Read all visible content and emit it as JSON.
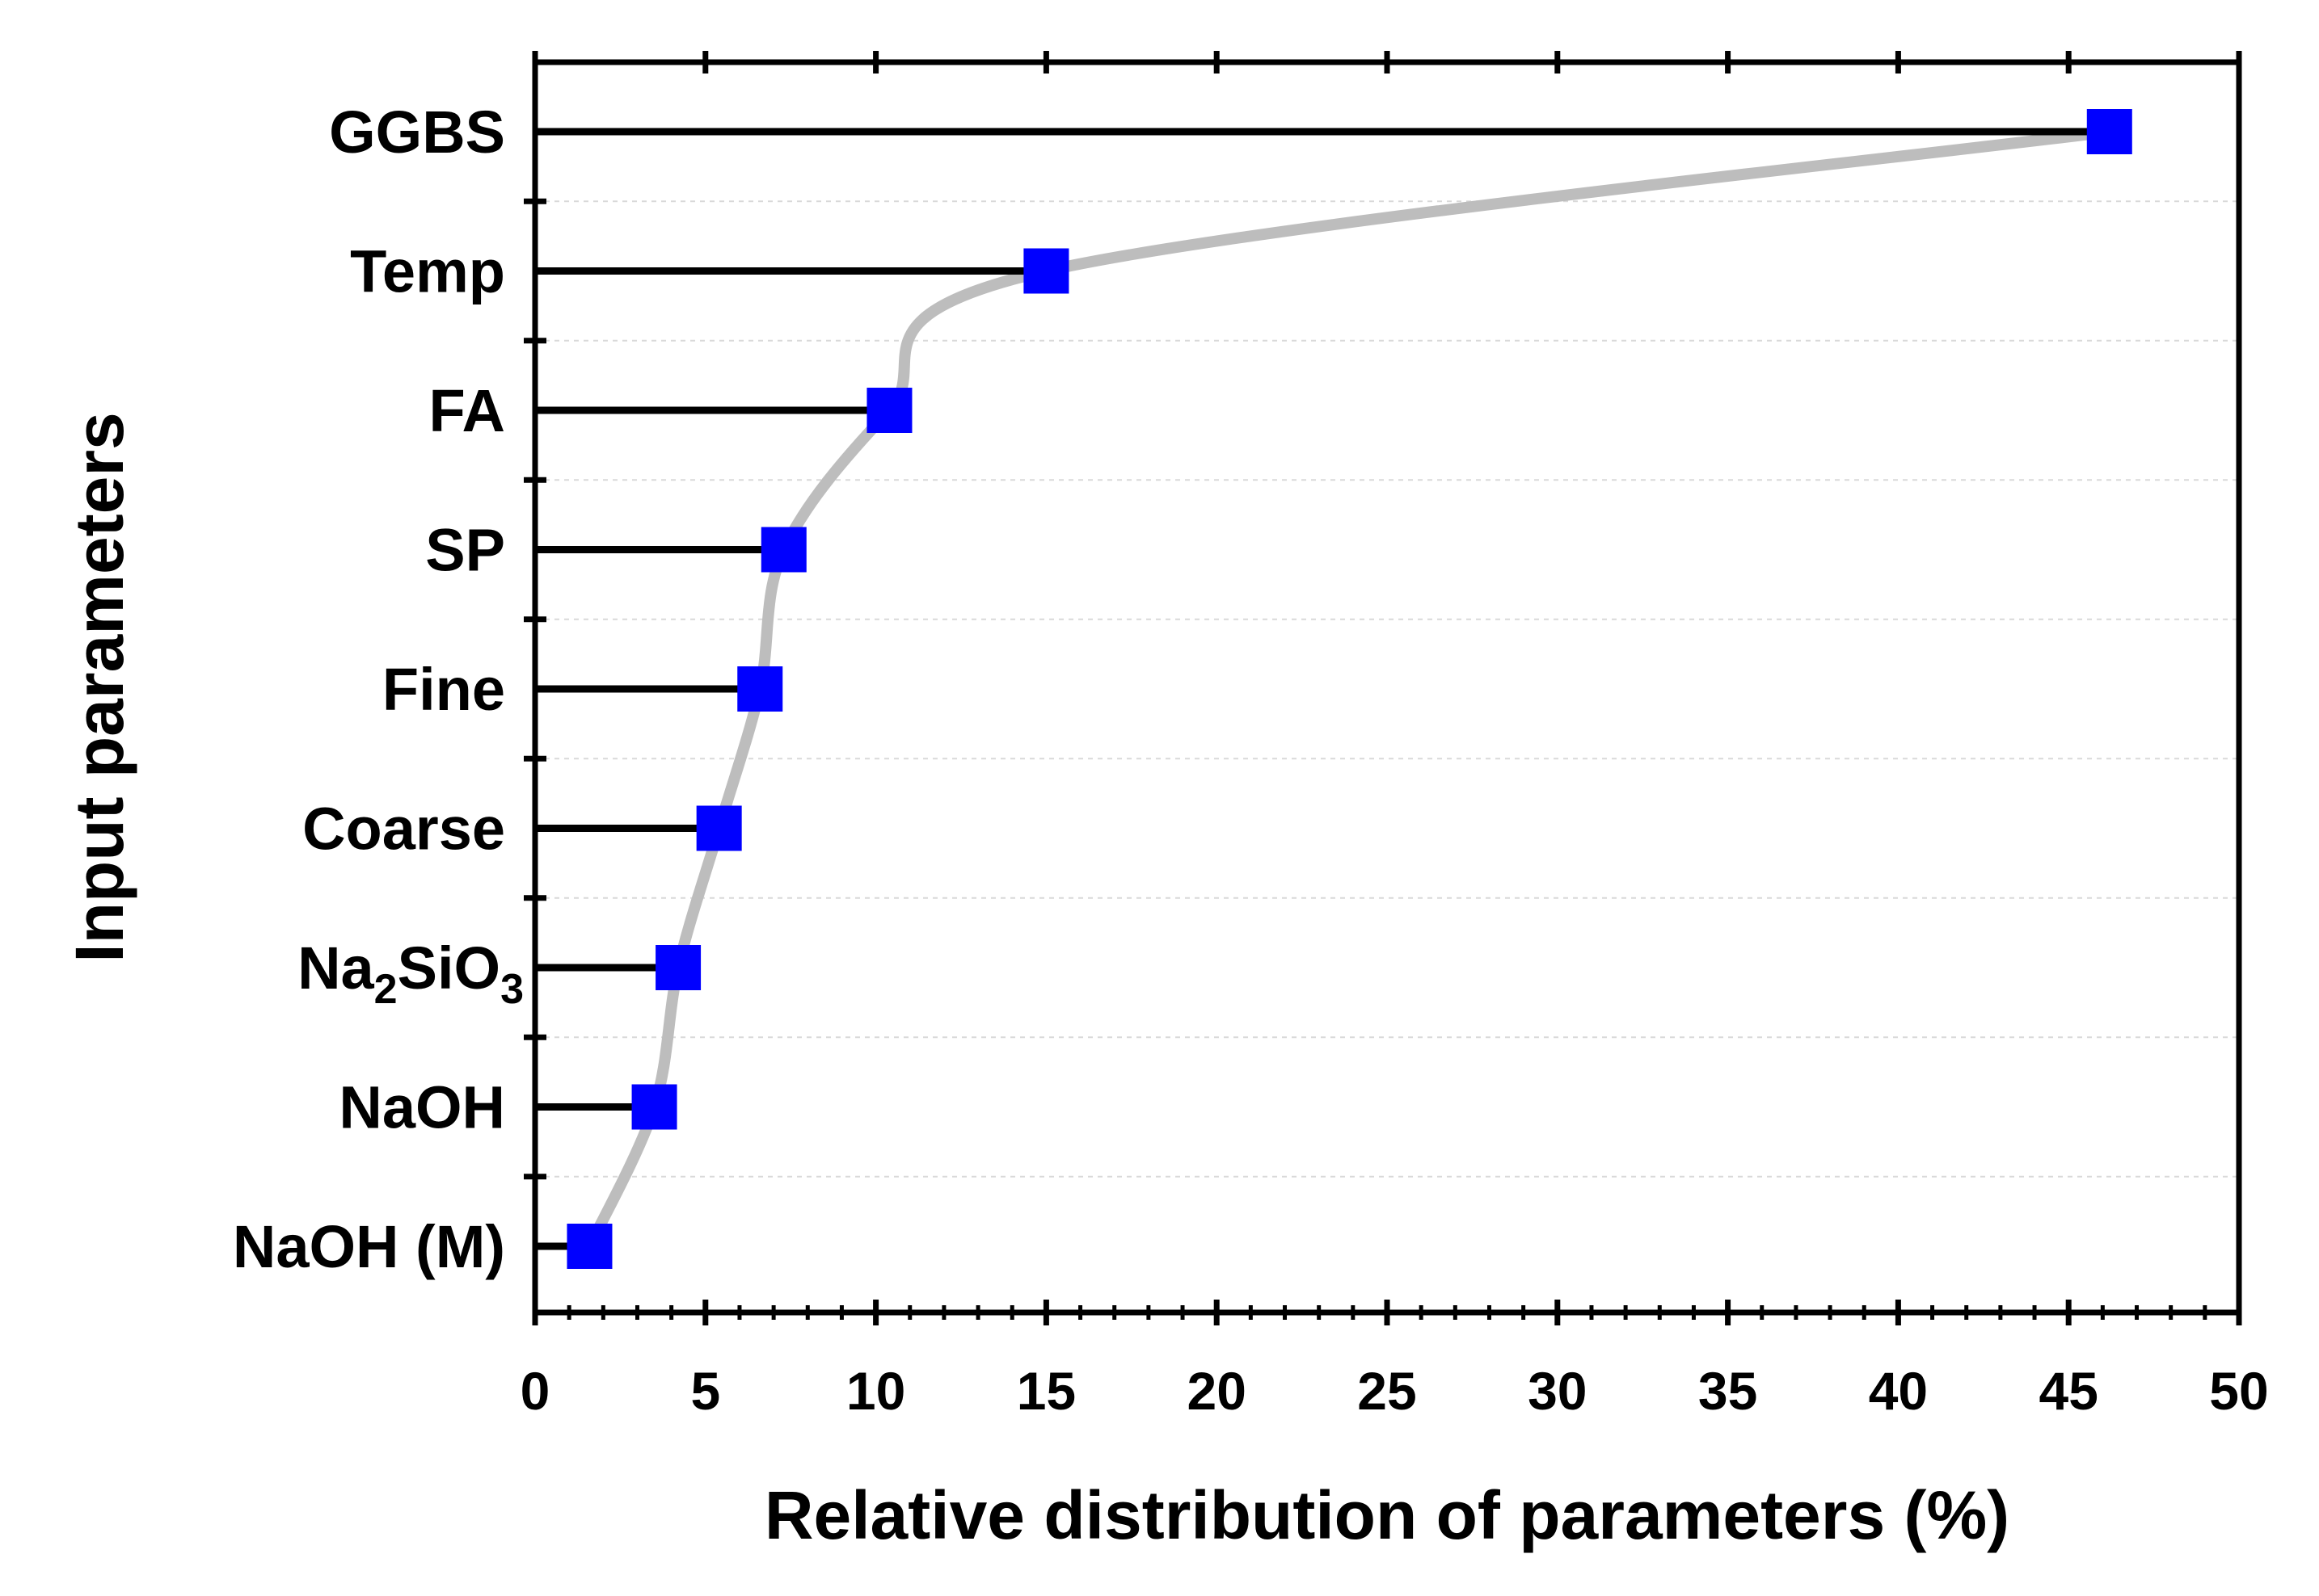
{
  "chart_data": {
    "type": "lollipop",
    "title": "",
    "xlabel": "Relative distribution of parameters (%)",
    "ylabel": "Input parameters",
    "xlim": [
      0,
      50
    ],
    "xticks": [
      0,
      5,
      10,
      15,
      20,
      25,
      30,
      35,
      40,
      45,
      50
    ],
    "categories": [
      "GGBS",
      "Temp",
      "FA",
      "SP",
      "Fine",
      "Coarse",
      "Na2SiO3",
      "NaOH",
      "NaOH (M)"
    ],
    "category_display": [
      {
        "base": "GGBS"
      },
      {
        "base": "Temp"
      },
      {
        "base": "FA"
      },
      {
        "base": "SP"
      },
      {
        "base": "Fine"
      },
      {
        "base": "Coarse"
      },
      {
        "base": "Na",
        "sub1": "2",
        "mid": "SiO",
        "sub2": "3"
      },
      {
        "base": "NaOH"
      },
      {
        "base": "NaOH (M)"
      }
    ],
    "values": [
      46.2,
      15.0,
      10.4,
      7.3,
      6.6,
      5.4,
      4.2,
      3.5,
      1.6
    ],
    "marker_color": "#0000ff",
    "stem_color": "#000000",
    "trend_color": "#bdbdbd",
    "grid": "horizontal dashed"
  }
}
